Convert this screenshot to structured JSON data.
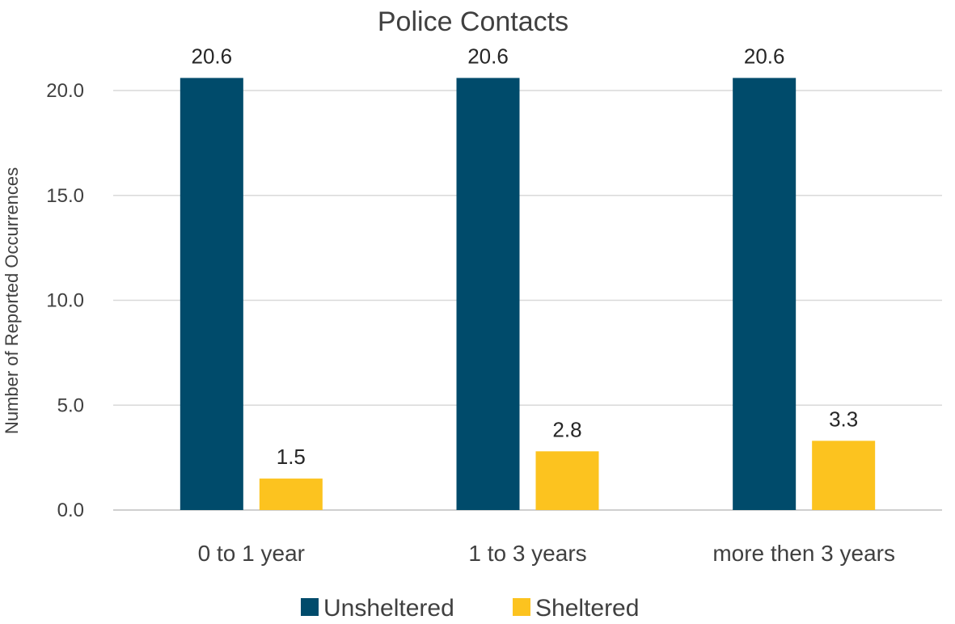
{
  "chart_data": {
    "type": "bar",
    "title": "Police Contacts",
    "xlabel": "",
    "ylabel": "Number of Reported Occurrences",
    "categories": [
      "0 to 1 year",
      "1 to 3 years",
      "more then 3 years"
    ],
    "series": [
      {
        "name": "Unsheltered",
        "color": "#004b6b",
        "values": [
          20.6,
          20.6,
          20.6
        ]
      },
      {
        "name": "Sheltered",
        "color": "#fcc31f",
        "values": [
          1.5,
          2.8,
          3.3
        ]
      }
    ],
    "data_labels": [
      [
        "20.6",
        "20.6",
        "20.6"
      ],
      [
        "1.5",
        "2.8",
        "3.3"
      ]
    ],
    "yticks": [
      "0.0",
      "5.0",
      "10.0",
      "15.0",
      "20.0"
    ],
    "ylim": [
      0,
      20
    ],
    "grid": true,
    "legend_position": "bottom"
  }
}
